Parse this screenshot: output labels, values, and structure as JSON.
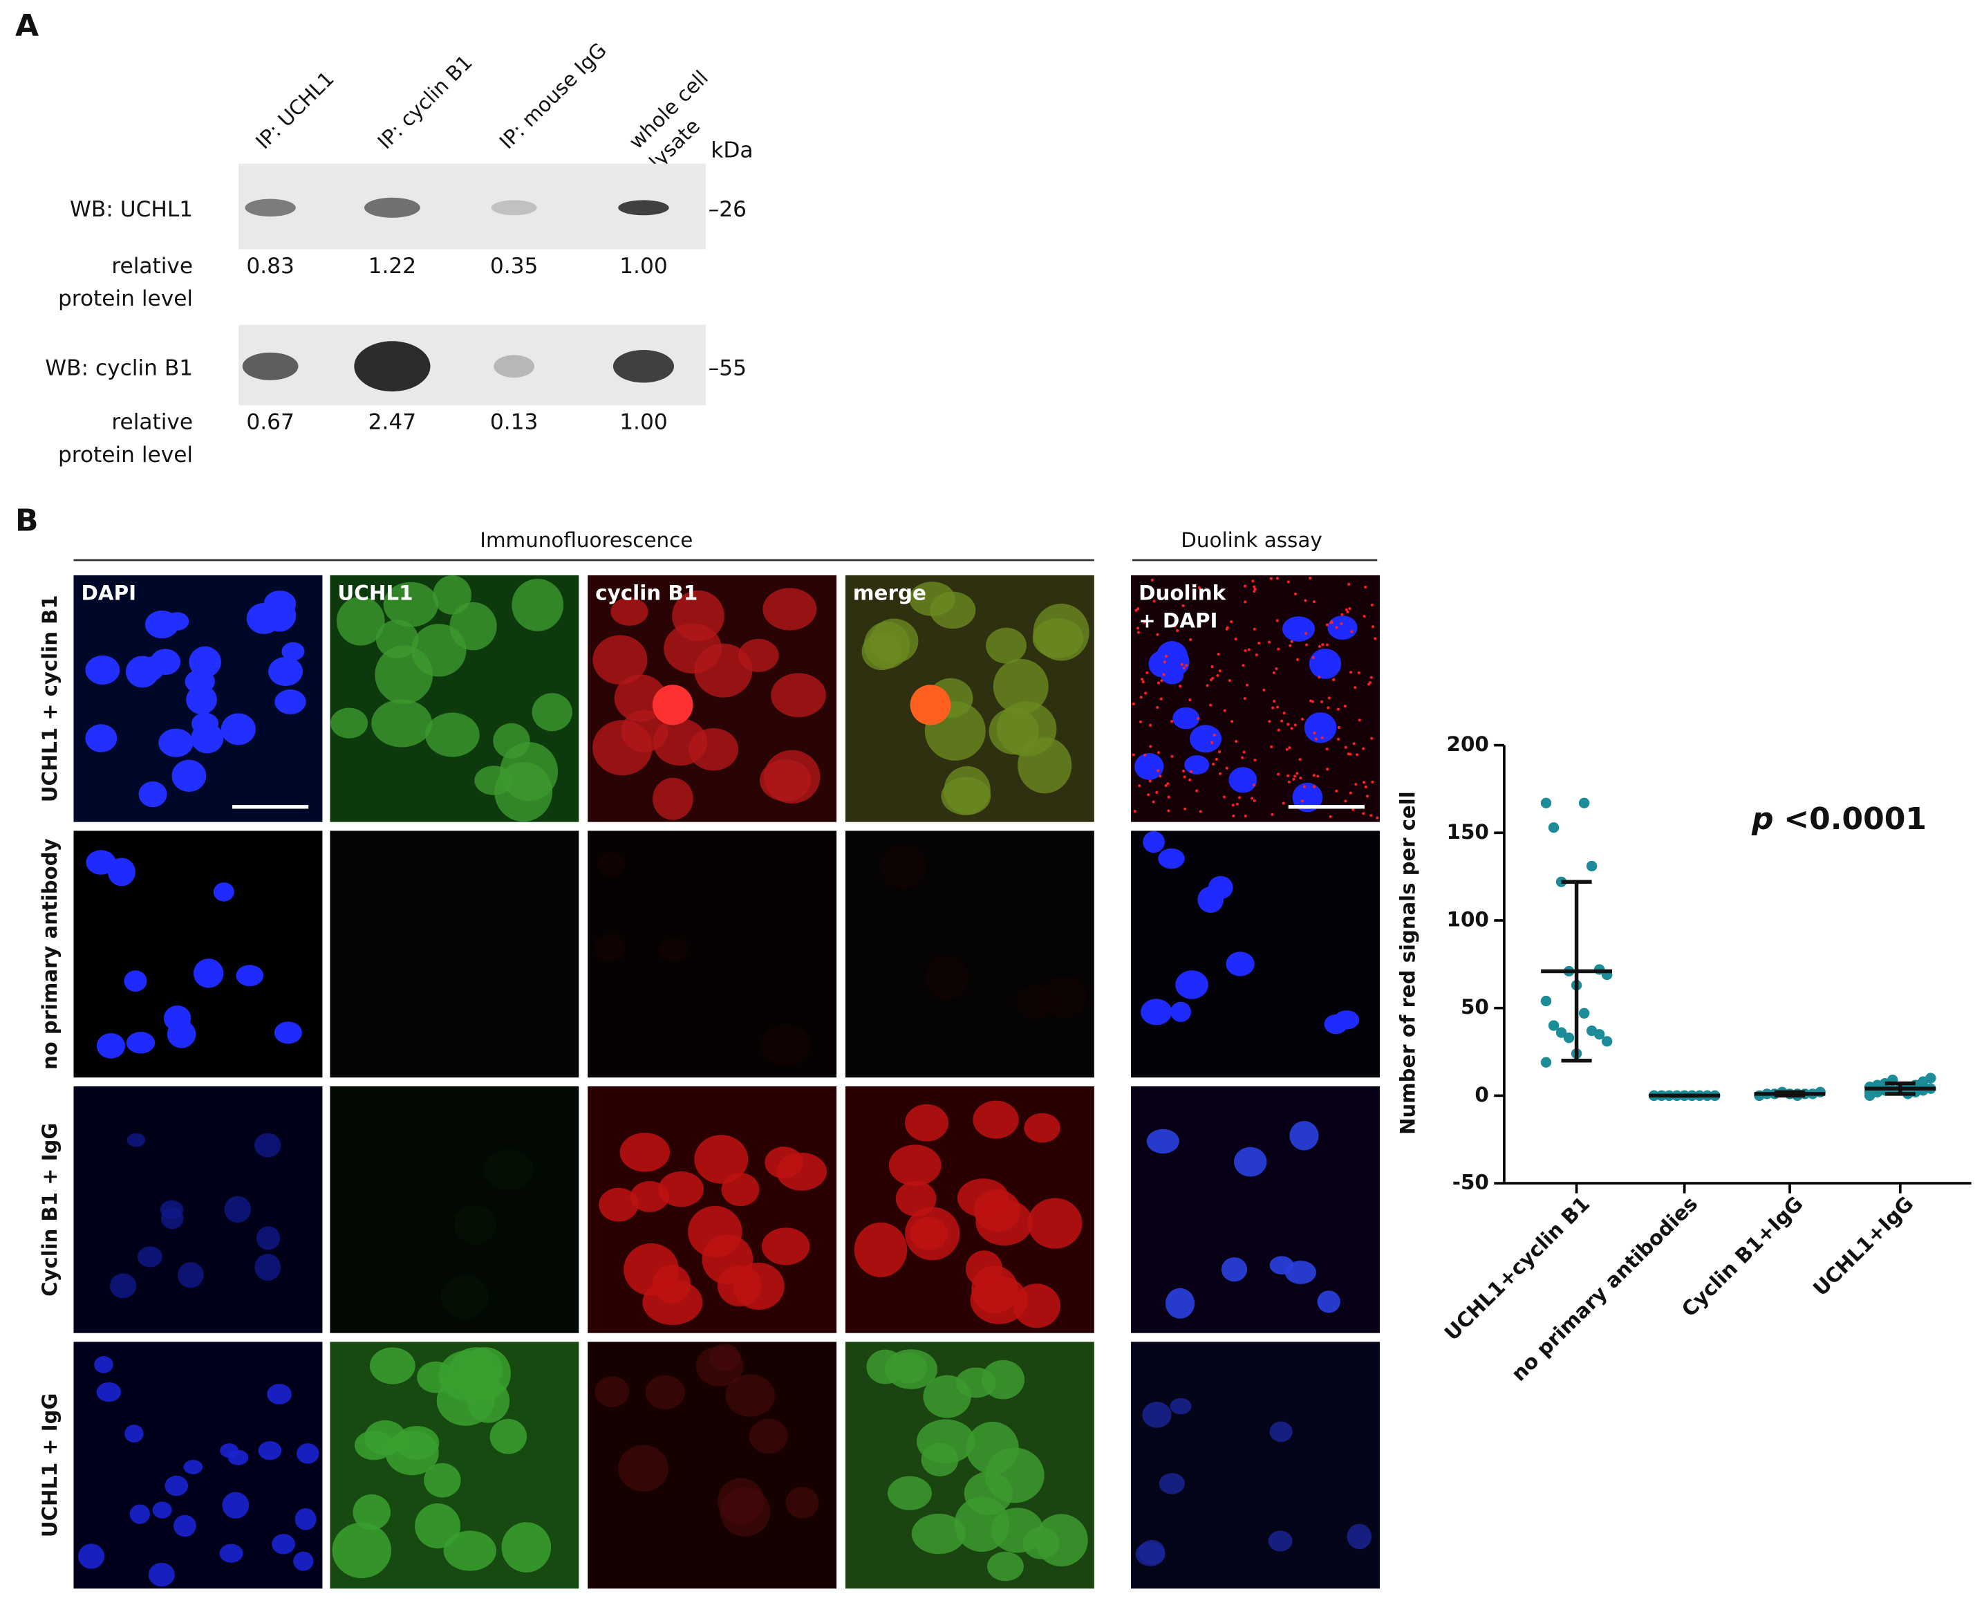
{
  "panel_a": {
    "letter": "A",
    "lanes": [
      "IP: UCHL1",
      "IP: cyclin B1",
      "IP: mouse IgG",
      [
        "whole cell",
        "lysate"
      ]
    ],
    "unit": "kDa",
    "blots": [
      {
        "label": "WB: UCHL1",
        "marker": "–26",
        "relative_label": [
          "relative",
          "protein level"
        ],
        "levels": [
          "0.83",
          "1.22",
          "0.35",
          "1.00"
        ]
      },
      {
        "label": "WB: cyclin B1",
        "marker": "–55",
        "relative_label": [
          "relative",
          "protein level"
        ],
        "levels": [
          "0.67",
          "2.47",
          "0.13",
          "1.00"
        ]
      }
    ]
  },
  "panel_b": {
    "letter": "B",
    "section_if": "Immunofluorescence",
    "section_duolink": "Duolink assay",
    "columns": [
      "DAPI",
      "UCHL1",
      "cyclin B1",
      "merge",
      [
        "Duolink",
        "+ DAPI"
      ]
    ],
    "rows": [
      "UCHL1 + cyclin B1",
      "no primary antibody",
      "Cyclin B1 + IgG",
      "UCHL1 + IgG"
    ]
  },
  "chart_data": {
    "type": "scatter",
    "y_label": "Number of red signals per cell",
    "annotation": {
      "italic": "p",
      "text": "<0.0001"
    },
    "categories": [
      "UCHL1+cyclin B1",
      "no primary antibodies",
      "Cyclin B1+IgG",
      "UCHL1+IgG"
    ],
    "color": "#1b8c98",
    "ylim": [
      -50,
      200
    ],
    "yticks": [
      -50,
      0,
      50,
      100,
      150,
      200
    ],
    "groups": [
      {
        "values": [
          167,
          167,
          153,
          131,
          122,
          72,
          71,
          69,
          63,
          54,
          47,
          40,
          37,
          36,
          35,
          33,
          31,
          24,
          19
        ],
        "mean": 71,
        "sd": 51
      },
      {
        "values": [
          0,
          0,
          0,
          0,
          0,
          0,
          0,
          0,
          0,
          0,
          0,
          0,
          0,
          0,
          0,
          0,
          0,
          0,
          0,
          0
        ],
        "mean": 0,
        "sd": 0
      },
      {
        "values": [
          0,
          0,
          1,
          1,
          1,
          1,
          2,
          2,
          1,
          0,
          1
        ],
        "mean": 1,
        "sd": 1
      },
      {
        "values": [
          0,
          1,
          2,
          2,
          3,
          3,
          3,
          4,
          4,
          5,
          5,
          6,
          6,
          7,
          8,
          9,
          10,
          3,
          2,
          4
        ],
        "mean": 4,
        "sd": 3
      }
    ]
  }
}
